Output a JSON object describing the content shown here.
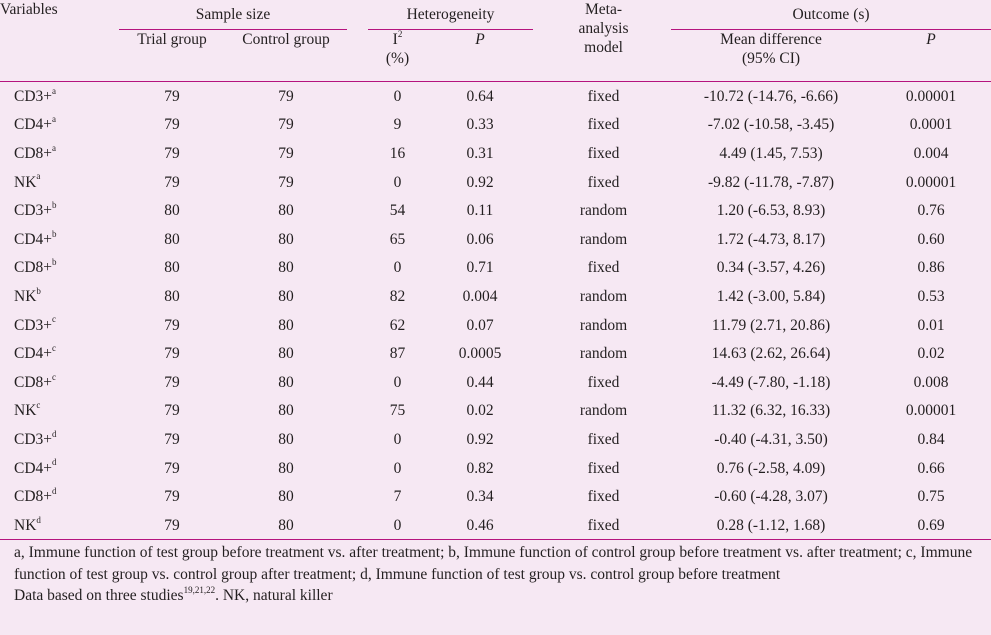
{
  "headers": {
    "variables": "Variables",
    "sample_size": "Sample size",
    "trial_group": "Trial group",
    "control_group": "Control group",
    "heterogeneity": "Heterogeneity",
    "i2": "I",
    "i2_sup": "2",
    "i2_unit": "(%)",
    "p": "P",
    "model_line1": "Meta-",
    "model_line2": "analysis",
    "model_line3": "model",
    "outcome": "Outcome (s)",
    "mean_diff_line1": "Mean difference",
    "mean_diff_line2": "(95% CI)",
    "outcome_p": "P"
  },
  "rows": [
    {
      "name": "CD3+",
      "sup": "a",
      "trial": "79",
      "control": "79",
      "i2": "0",
      "p": "0.64",
      "model": "fixed",
      "md": "-10.72 (-14.76, -6.66)",
      "op": "0.00001"
    },
    {
      "name": "CD4+",
      "sup": "a",
      "trial": "79",
      "control": "79",
      "i2": "9",
      "p": "0.33",
      "model": "fixed",
      "md": "-7.02 (-10.58, -3.45)",
      "op": "0.0001"
    },
    {
      "name": "CD8+",
      "sup": "a",
      "trial": "79",
      "control": "79",
      "i2": "16",
      "p": "0.31",
      "model": "fixed",
      "md": "4.49 (1.45, 7.53)",
      "op": "0.004"
    },
    {
      "name": "NK",
      "sup": "a",
      "trial": "79",
      "control": "79",
      "i2": "0",
      "p": "0.92",
      "model": "fixed",
      "md": "-9.82 (-11.78, -7.87)",
      "op": "0.00001"
    },
    {
      "name": "CD3+",
      "sup": "b",
      "trial": "80",
      "control": "80",
      "i2": "54",
      "p": "0.11",
      "model": "random",
      "md": "1.20 (-6.53, 8.93)",
      "op": "0.76"
    },
    {
      "name": "CD4+",
      "sup": "b",
      "trial": "80",
      "control": "80",
      "i2": "65",
      "p": "0.06",
      "model": "random",
      "md": "1.72 (-4.73, 8.17)",
      "op": "0.60"
    },
    {
      "name": "CD8+",
      "sup": "b",
      "trial": "80",
      "control": "80",
      "i2": "0",
      "p": "0.71",
      "model": "fixed",
      "md": "0.34 (-3.57, 4.26)",
      "op": "0.86"
    },
    {
      "name": "NK",
      "sup": "b",
      "trial": "80",
      "control": "80",
      "i2": "82",
      "p": "0.004",
      "model": "random",
      "md": "1.42 (-3.00, 5.84)",
      "op": "0.53"
    },
    {
      "name": "CD3+",
      "sup": "c",
      "trial": "79",
      "control": "80",
      "i2": "62",
      "p": "0.07",
      "model": "random",
      "md": "11.79 (2.71, 20.86)",
      "op": "0.01"
    },
    {
      "name": "CD4+",
      "sup": "c",
      "trial": "79",
      "control": "80",
      "i2": "87",
      "p": "0.0005",
      "model": "random",
      "md": "14.63 (2.62, 26.64)",
      "op": "0.02"
    },
    {
      "name": "CD8+",
      "sup": "c",
      "trial": "79",
      "control": "80",
      "i2": "0",
      "p": "0.44",
      "model": "fixed",
      "md": "-4.49 (-7.80, -1.18)",
      "op": "0.008"
    },
    {
      "name": "NK",
      "sup": "c",
      "trial": "79",
      "control": "80",
      "i2": "75",
      "p": "0.02",
      "model": "random",
      "md": "11.32 (6.32, 16.33)",
      "op": "0.00001"
    },
    {
      "name": "CD3+",
      "sup": "d",
      "trial": "79",
      "control": "80",
      "i2": "0",
      "p": "0.92",
      "model": "fixed",
      "md": "-0.40 (-4.31, 3.50)",
      "op": "0.84"
    },
    {
      "name": "CD4+",
      "sup": "d",
      "trial": "79",
      "control": "80",
      "i2": "0",
      "p": "0.82",
      "model": "fixed",
      "md": "0.76 (-2.58, 4.09)",
      "op": "0.66"
    },
    {
      "name": "CD8+",
      "sup": "d",
      "trial": "79",
      "control": "80",
      "i2": "7",
      "p": "0.34",
      "model": "fixed",
      "md": "-0.60 (-4.28, 3.07)",
      "op": "0.75"
    },
    {
      "name": "NK",
      "sup": "d",
      "trial": "79",
      "control": "80",
      "i2": "0",
      "p": "0.46",
      "model": "fixed",
      "md": "0.28 (-1.12, 1.68)",
      "op": "0.69"
    }
  ],
  "footnotes": {
    "definitions": "a, Immune function of test group before treatment vs. after treatment; b, Immune function of control group before treatment vs. after treatment; c, Immune function of test group vs. control group after treatment; d, Immune function of test group vs. control group before treatment",
    "source_prefix": "Data based on three studies",
    "source_refs": "19,21,22",
    "source_suffix": ". NK, natural killer"
  },
  "colors": {
    "background": "#f6e8f3",
    "rule": "#b5137e",
    "text": "#231f20"
  }
}
